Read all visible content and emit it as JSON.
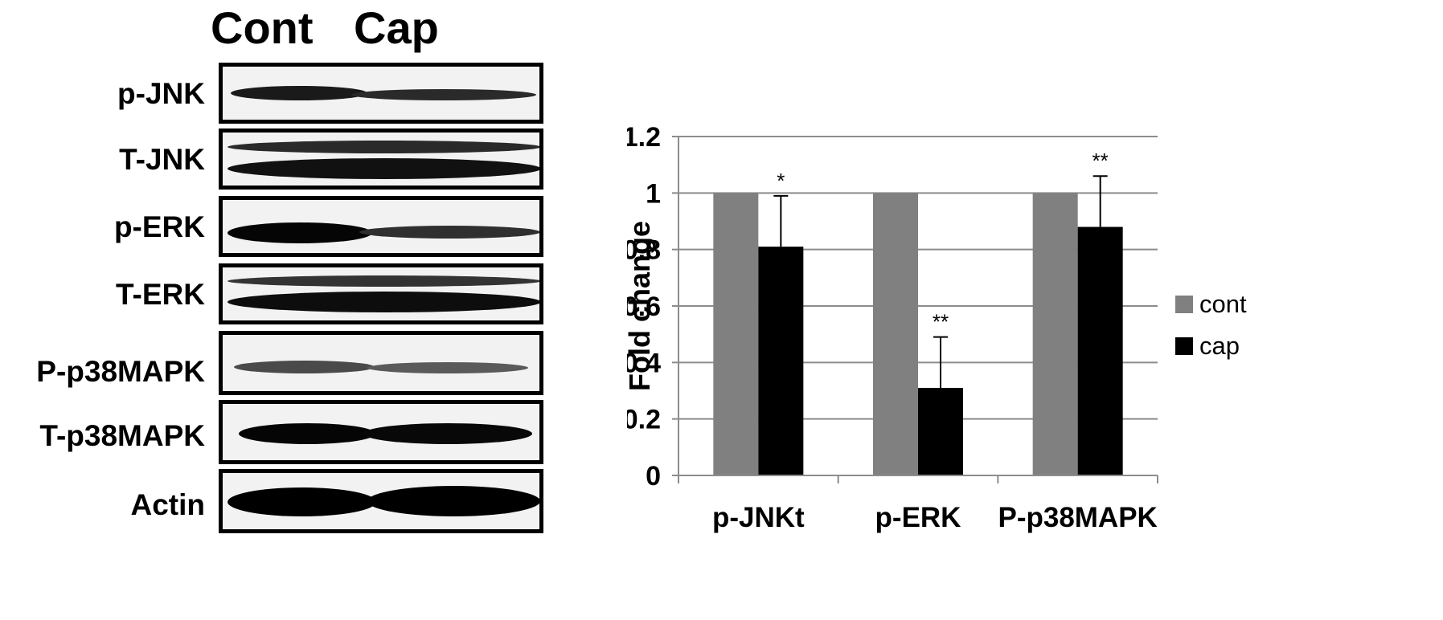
{
  "blot": {
    "columns": [
      "Cont",
      "Cap"
    ],
    "rows": [
      {
        "label": "p-JNK"
      },
      {
        "label": "T-JNK"
      },
      {
        "label": "p-ERK"
      },
      {
        "label": "T-ERK"
      },
      {
        "label": "P-p38MAPK"
      },
      {
        "label": "T-p38MAPK"
      },
      {
        "label": "Actin"
      }
    ]
  },
  "chart_data": {
    "type": "bar",
    "categories": [
      "p-JNKt",
      "p-ERK",
      "P-p38MAPK"
    ],
    "series": [
      {
        "name": "cont",
        "color": "#808080",
        "values": [
          1.0,
          1.0,
          1.0
        ],
        "errors": [
          0,
          0,
          0
        ]
      },
      {
        "name": "cap",
        "color": "#000000",
        "values": [
          0.81,
          0.31,
          0.88
        ],
        "errors": [
          0.18,
          0.18,
          0.18
        ]
      }
    ],
    "significance": [
      "*",
      "**",
      "**"
    ],
    "ylabel": "Fold change",
    "xlabel": "",
    "ylim": [
      0,
      1.2
    ],
    "yticks": [
      "0",
      "0.2",
      "0.4",
      "0.6",
      "0.8",
      "1",
      "1.2"
    ],
    "grid": true,
    "legend": "right"
  }
}
